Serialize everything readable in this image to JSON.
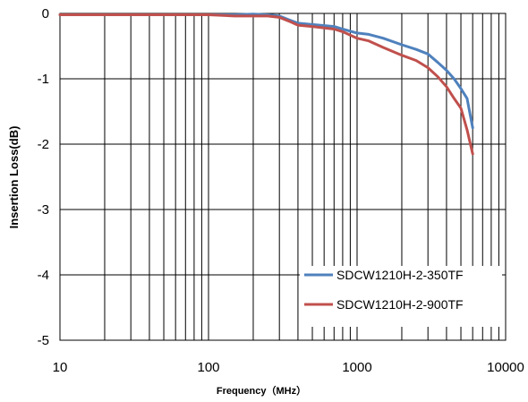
{
  "chart_data": {
    "type": "line",
    "title": "",
    "xlabel": "Frequency（MHz）",
    "ylabel": "Insertion Loss(dB)",
    "x_scale": "log",
    "xlim": [
      10,
      10000
    ],
    "ylim": [
      -5,
      0
    ],
    "x_ticks": [
      10,
      100,
      1000,
      10000
    ],
    "x_tick_labels": [
      "10",
      "100",
      "1000",
      "10000"
    ],
    "y_ticks": [
      0,
      -1,
      -2,
      -3,
      -4,
      -5
    ],
    "y_tick_labels": [
      "0",
      "-1",
      "-2",
      "-3",
      "-4",
      "-5"
    ],
    "grid": true,
    "legend_position": "bottom-right",
    "series": [
      {
        "name": "SDCW1210H-2-350TF",
        "color": "#4F81BD",
        "x": [
          10,
          20,
          50,
          100,
          150,
          200,
          250,
          300,
          350,
          400,
          500,
          700,
          800,
          1000,
          1200,
          1500,
          2000,
          2500,
          3000,
          3500,
          4000,
          4500,
          5000,
          5500,
          6000
        ],
        "y": [
          -0.02,
          -0.02,
          -0.02,
          -0.02,
          -0.02,
          -0.01,
          -0.02,
          -0.04,
          -0.1,
          -0.15,
          -0.17,
          -0.2,
          -0.24,
          -0.3,
          -0.32,
          -0.38,
          -0.48,
          -0.55,
          -0.62,
          -0.75,
          -0.87,
          -1.0,
          -1.15,
          -1.3,
          -1.75
        ]
      },
      {
        "name": "SDCW1210H-2-900TF",
        "color": "#C0504D",
        "x": [
          10,
          20,
          50,
          100,
          150,
          200,
          250,
          300,
          350,
          400,
          500,
          700,
          800,
          1000,
          1200,
          1500,
          2000,
          2500,
          3000,
          3500,
          4000,
          4500,
          5000,
          5500,
          6000
        ],
        "y": [
          -0.02,
          -0.02,
          -0.02,
          -0.02,
          -0.04,
          -0.04,
          -0.04,
          -0.06,
          -0.12,
          -0.18,
          -0.2,
          -0.24,
          -0.28,
          -0.38,
          -0.42,
          -0.52,
          -0.64,
          -0.72,
          -0.83,
          -0.97,
          -1.12,
          -1.3,
          -1.45,
          -1.78,
          -2.15
        ]
      }
    ]
  }
}
